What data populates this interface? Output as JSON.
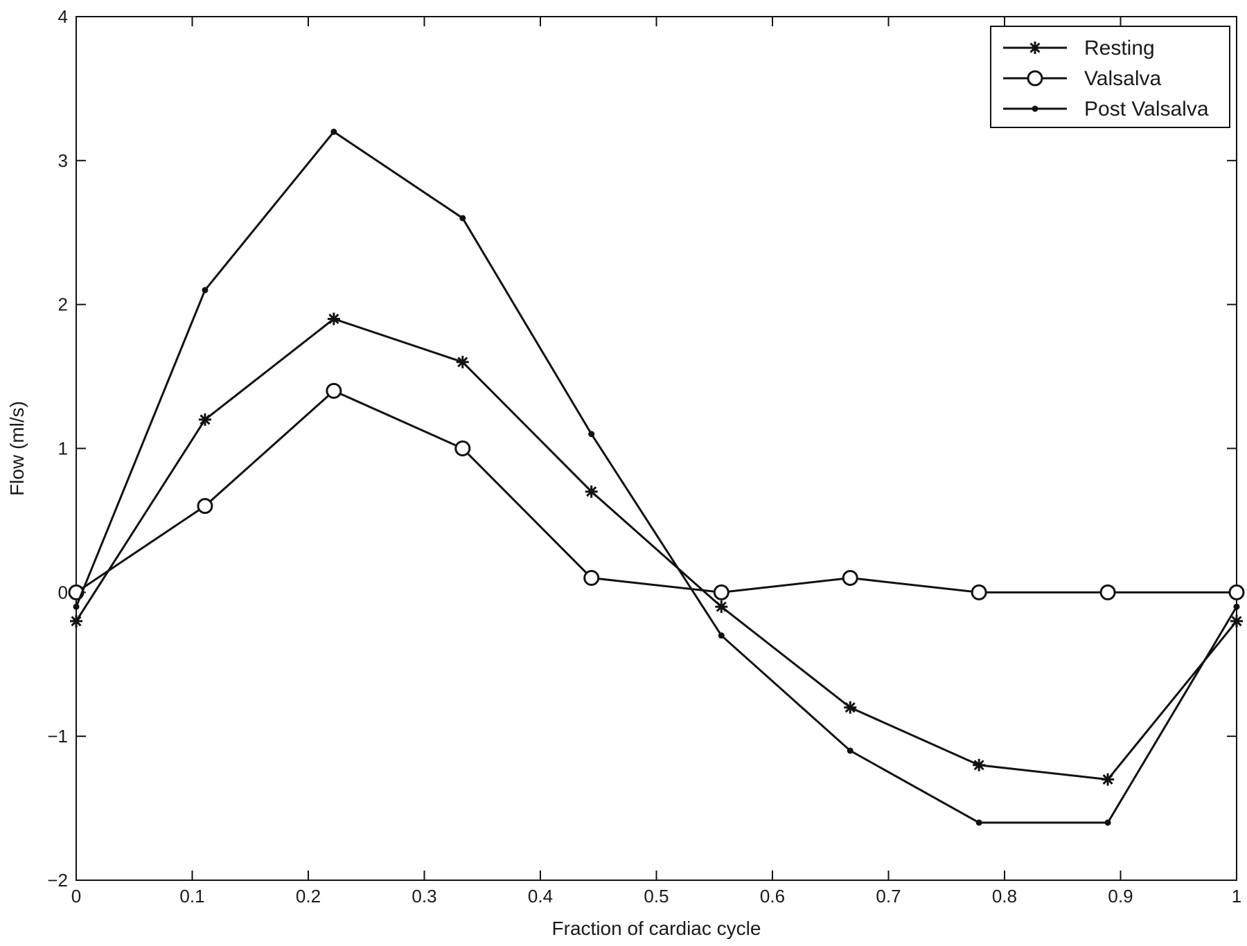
{
  "chart_data": {
    "type": "line",
    "xlabel": "Fraction of cardiac cycle",
    "ylabel": "Flow (ml/s)",
    "xlim": [
      0,
      1
    ],
    "ylim": [
      -2,
      4
    ],
    "xticks": [
      0,
      0.1,
      0.2,
      0.3,
      0.4,
      0.5,
      0.6,
      0.7,
      0.8,
      0.9,
      1
    ],
    "yticks": [
      -2,
      -1,
      0,
      1,
      2,
      3,
      4
    ],
    "xtick_labels": [
      "0",
      "0.1",
      "0.2",
      "0.3",
      "0.4",
      "0.5",
      "0.6",
      "0.7",
      "0.8",
      "0.9",
      "1"
    ],
    "ytick_labels": [
      "−2",
      "−1",
      "0",
      "1",
      "2",
      "3",
      "4"
    ],
    "grid": false,
    "legend_position": "top-right",
    "x": [
      0,
      0.111,
      0.222,
      0.333,
      0.444,
      0.556,
      0.667,
      0.778,
      0.889,
      1.0
    ],
    "series": [
      {
        "name": "Resting",
        "marker": "asterisk",
        "color": "#111111",
        "values": [
          -0.2,
          1.2,
          1.9,
          1.6,
          0.7,
          -0.1,
          -0.8,
          -1.2,
          -1.3,
          -0.2
        ]
      },
      {
        "name": "Valsalva",
        "marker": "circle",
        "color": "#111111",
        "values": [
          0.0,
          0.6,
          1.4,
          1.0,
          0.1,
          0.0,
          0.1,
          0.0,
          0.0,
          0.0
        ]
      },
      {
        "name": "Post Valsalva",
        "marker": "dot",
        "color": "#111111",
        "values": [
          -0.1,
          2.1,
          3.2,
          2.6,
          1.1,
          -0.3,
          -1.1,
          -1.6,
          -1.6,
          -0.1
        ]
      }
    ]
  }
}
